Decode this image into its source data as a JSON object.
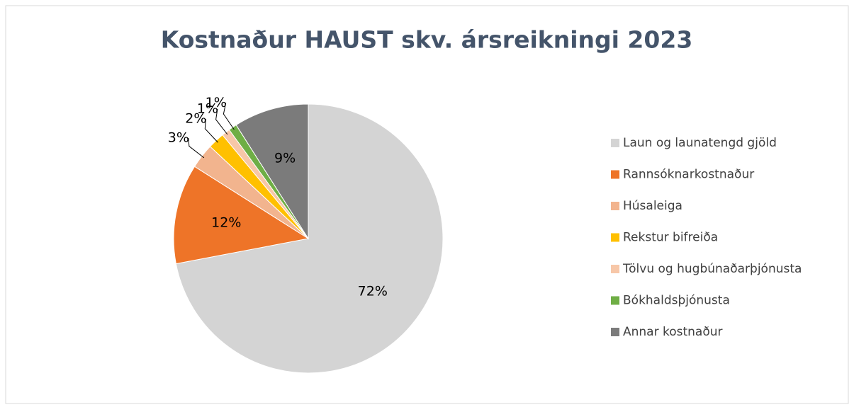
{
  "chart_data": {
    "type": "pie",
    "title": "Kostnaður HAUST skv. ársreikningi 2023",
    "categories": [
      "Laun og launatengd gjöld",
      "Rannsóknarkostnaður",
      "Húsaleiga",
      "Rekstur bifreiða",
      "Tölvu og hugbúnaðarþjónusta",
      "Bókhaldsþjónusta",
      "Annar kostnaður"
    ],
    "values": [
      72,
      12,
      3,
      2,
      1,
      1,
      9
    ],
    "value_labels": [
      "72%",
      "12%",
      "3%",
      "2%",
      "1%",
      "1%",
      "9%"
    ],
    "colors": [
      "#d4d4d4",
      "#ee7428",
      "#f2b48e",
      "#ffc000",
      "#f7c7a8",
      "#6fae45",
      "#7b7b7b"
    ],
    "legend": "right"
  }
}
